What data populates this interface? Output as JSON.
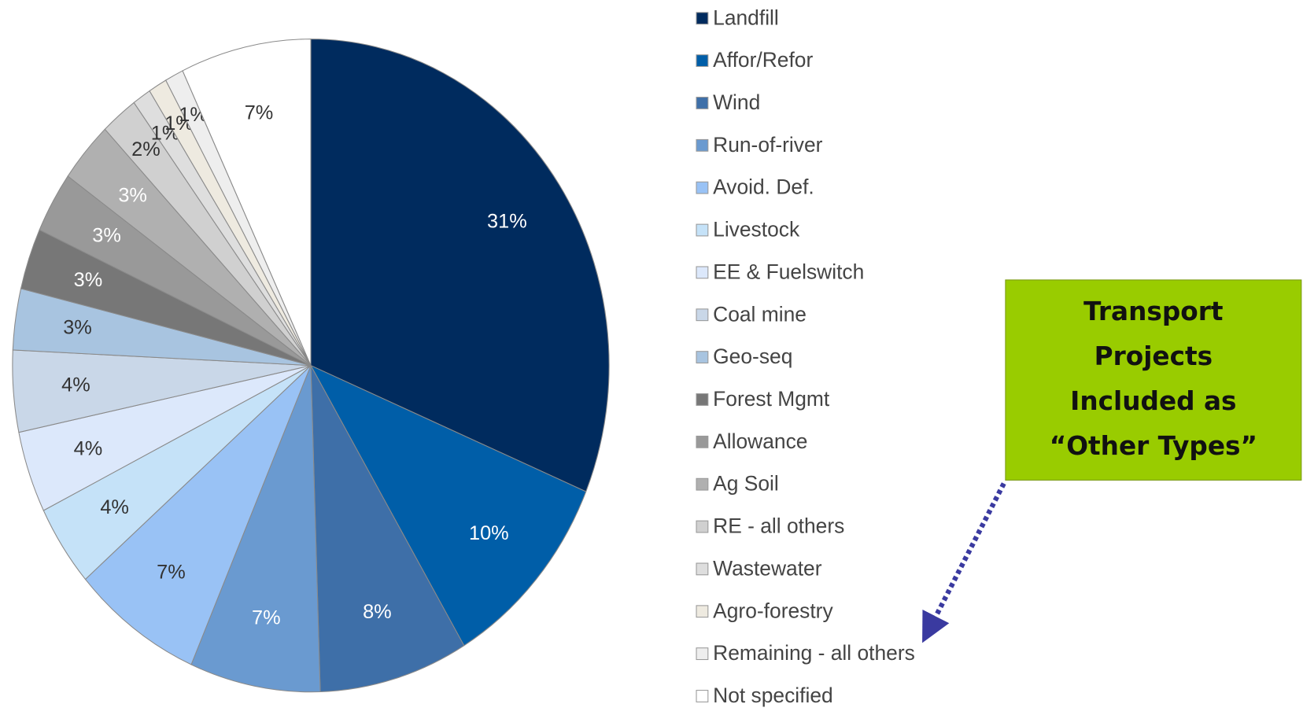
{
  "chart_data": {
    "type": "pie",
    "categories": [
      "Landfill",
      "Affor/Refor",
      "Wind",
      "Run-of-river",
      "Avoid. Def.",
      "Livestock",
      "EE & Fuelswitch",
      "Coal mine",
      "Geo-seq",
      "Forest Mgmt",
      "Allowance",
      "Ag Soil",
      "RE - all others",
      "Wastewater",
      "Agro-forestry",
      "Remaining - all others",
      "Not specified"
    ],
    "values": [
      31,
      10,
      8,
      7,
      7,
      4,
      4,
      4,
      3,
      3,
      3,
      3,
      2,
      1,
      1,
      1,
      7
    ],
    "value_labels": [
      "31%",
      "10%",
      "8%",
      "7%",
      "7%",
      "4%",
      "4%",
      "4%",
      "3%",
      "3%",
      "3%",
      "3%",
      "2%",
      "1%",
      "1%",
      "1%",
      "7%"
    ],
    "colors": [
      "#002b5e",
      "#005ea8",
      "#3e6fa8",
      "#6a9ad0",
      "#99c2f5",
      "#c5e2f8",
      "#dce8fb",
      "#c9d7e8",
      "#a8c4e0",
      "#777777",
      "#999999",
      "#b0b0b0",
      "#d0d0d0",
      "#dedede",
      "#eeeae0",
      "#eeeeee",
      "#ffffff"
    ],
    "label_colors": [
      "#ffffff",
      "#ffffff",
      "#ffffff",
      "#ffffff",
      "#333333",
      "#333333",
      "#333333",
      "#333333",
      "#333333",
      "#ffffff",
      "#ffffff",
      "#ffffff",
      "#333333",
      "#333333",
      "#333333",
      "#333333",
      "#333333"
    ],
    "annotation": [
      "Transport",
      "Projects",
      "Included as",
      "“Other Types”"
    ]
  }
}
